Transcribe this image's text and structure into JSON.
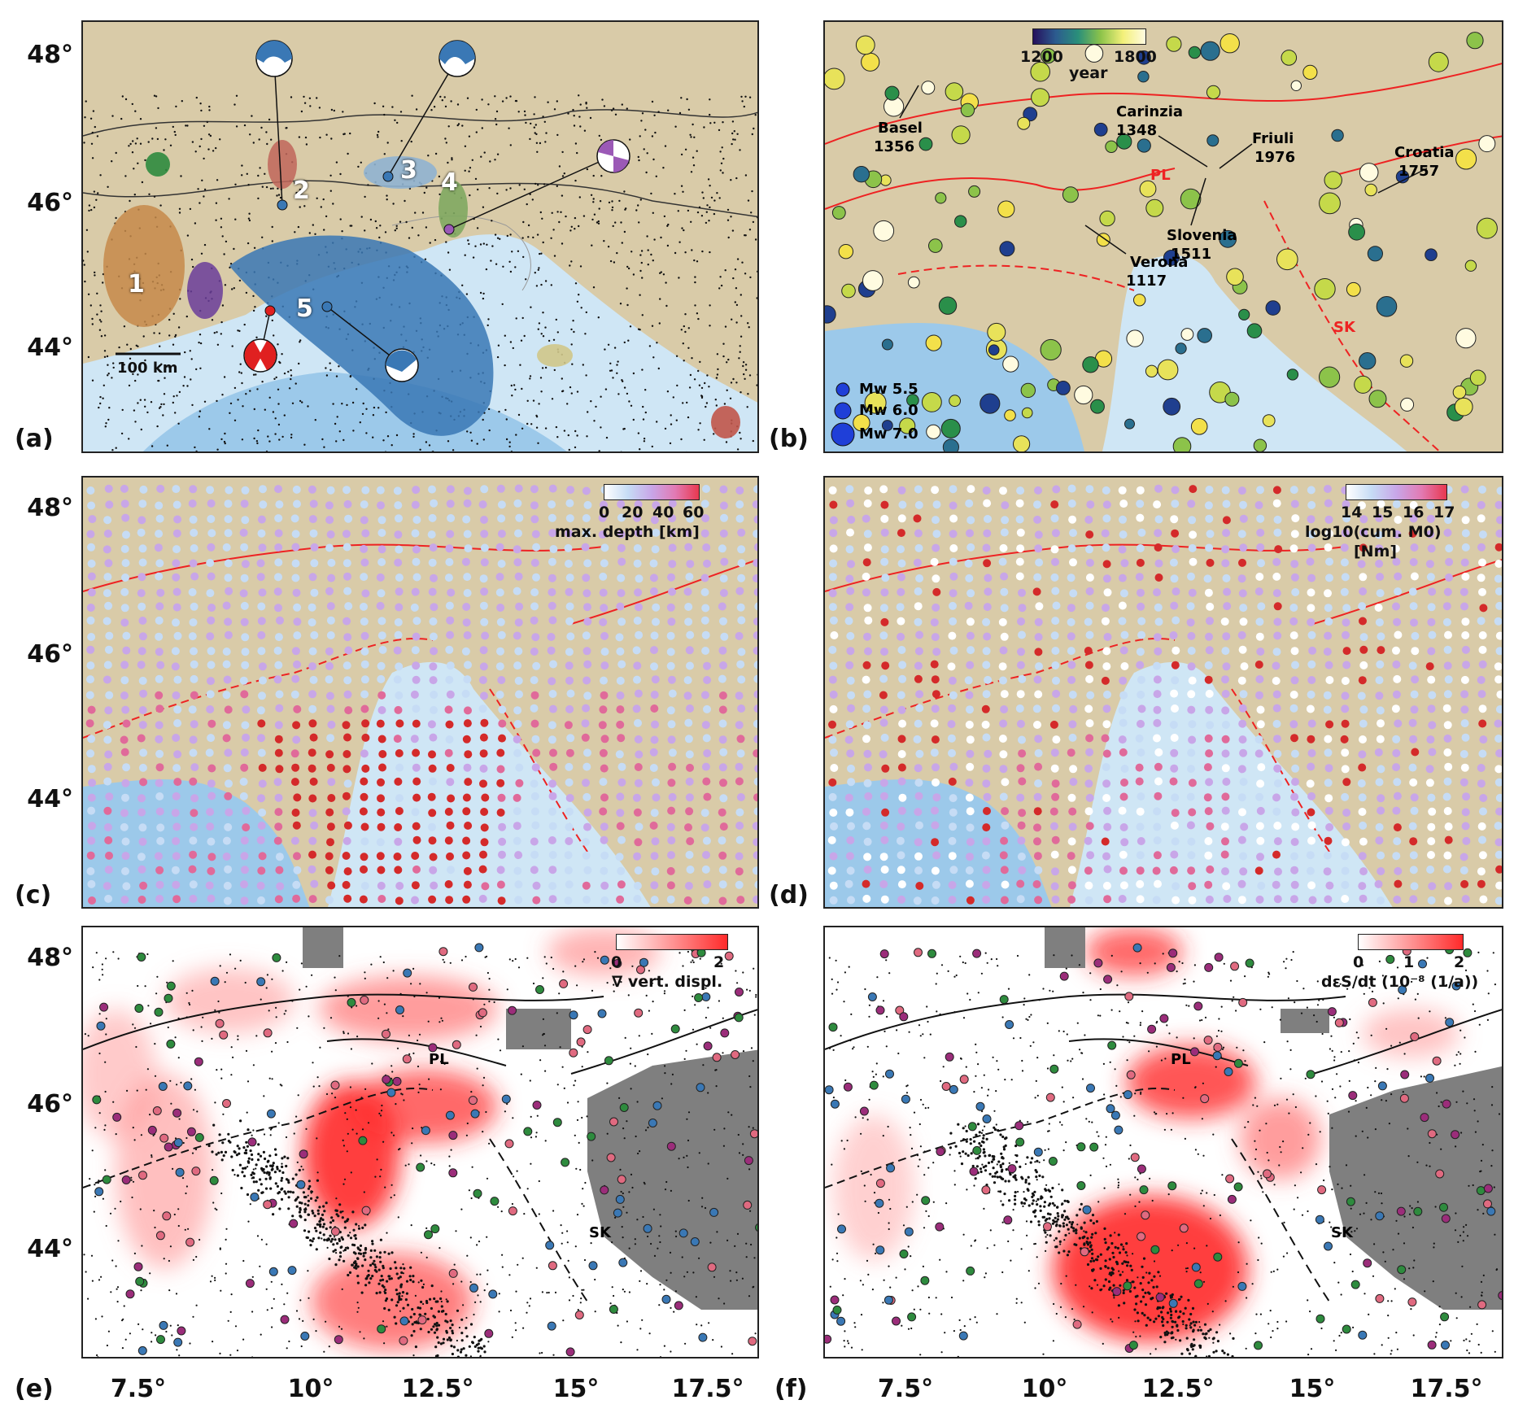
{
  "panels": [
    {
      "id": "a",
      "label": "(a)"
    },
    {
      "id": "b",
      "label": "(b)"
    },
    {
      "id": "c",
      "label": "(c)"
    },
    {
      "id": "d",
      "label": "(d)"
    },
    {
      "id": "e",
      "label": "(e)"
    },
    {
      "id": "f",
      "label": "(f)"
    }
  ],
  "axes": {
    "lat_ticks": [
      "48°",
      "46°",
      "44°"
    ],
    "lon_ticks": [
      "7.5°",
      "10°",
      "12.5°",
      "15°",
      "17.5°"
    ]
  },
  "panel_a": {
    "clusters": [
      "1",
      "2",
      "3",
      "4",
      "5"
    ],
    "scale_bar": "100 km"
  },
  "panel_b": {
    "colorbar": {
      "ticks": [
        "1200",
        "1800"
      ],
      "label": "year"
    },
    "events": [
      {
        "name": "Basel",
        "year": "1356"
      },
      {
        "name": "Carinzia",
        "year": "1348"
      },
      {
        "name": "Friuli",
        "year": "1976"
      },
      {
        "name": "Croatia",
        "year": "1757"
      },
      {
        "name": "Slovenia",
        "year": "1511"
      },
      {
        "name": "Verona",
        "year": "1117"
      }
    ],
    "fault_labels": [
      "PL",
      "SK"
    ],
    "magnitude_legend": [
      "Mw 5.5",
      "Mw 6.0",
      "Mw 7.0"
    ]
  },
  "panel_c": {
    "colorbar": {
      "ticks": [
        "0",
        "20",
        "40",
        "60"
      ],
      "label": "max. depth [km]"
    }
  },
  "panel_d": {
    "colorbar": {
      "ticks": [
        "14",
        "15",
        "16",
        "17"
      ],
      "label1": "log10(cum. M0)",
      "label2": "[Nm]"
    }
  },
  "panel_e": {
    "colorbar": {
      "ticks": [
        "0",
        "2"
      ],
      "label": "∇ vert. displ."
    },
    "fault_labels": [
      "PL",
      "SK"
    ]
  },
  "panel_f": {
    "colorbar": {
      "ticks": [
        "0",
        "1",
        "2"
      ],
      "label": "dεS/dt (10⁻⁸ (1/a))"
    },
    "fault_labels": [
      "PL",
      "SK"
    ]
  },
  "colors": {
    "land": "#d9cba8",
    "sea": "#cfe6f5",
    "deep_sea": "#7fb8e3",
    "fault": "#ee2222",
    "cluster_blue": "#3a78b5",
    "strain": "#ff2a2a"
  }
}
